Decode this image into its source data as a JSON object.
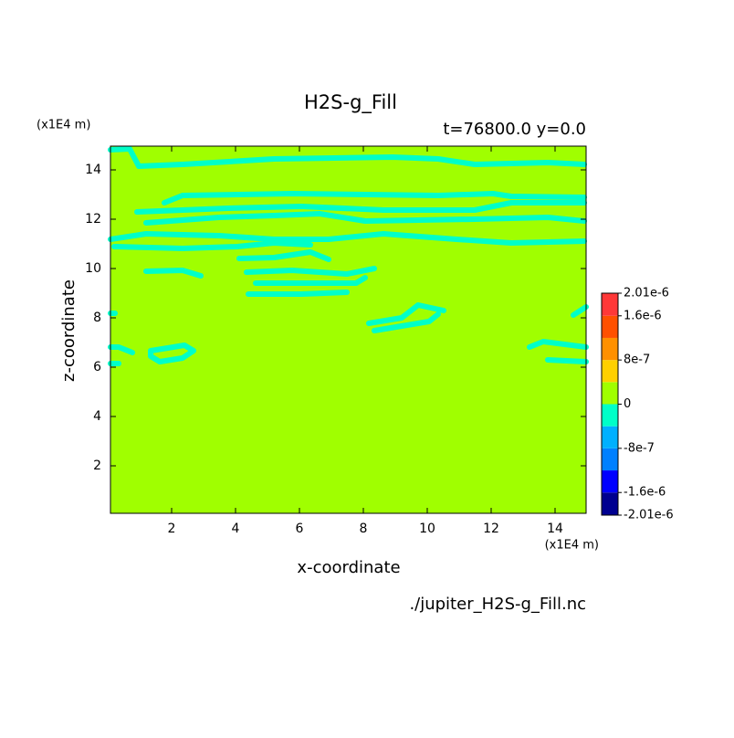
{
  "chart_data": {
    "type": "contour",
    "title": "H2S-g_Fill",
    "subtitle": "t=76800.0 y=0.0",
    "x_label": "x-coordinate",
    "y_label": "z-coordinate",
    "x_unit": "(x1E4 m)",
    "y_unit": "(x1E4 m)",
    "source": "./jupiter_H2S-g_Fill.nc",
    "xlim": [
      0,
      15
    ],
    "ylim": [
      0,
      15
    ],
    "xticks": [
      2,
      4,
      6,
      8,
      10,
      12,
      14
    ],
    "yticks": [
      2,
      4,
      6,
      8,
      10,
      12,
      14
    ],
    "colorbar": {
      "levels": [
        -2.01e-06,
        -1.6e-06,
        -1.2e-06,
        -8e-07,
        -4e-07,
        0,
        4e-07,
        8e-07,
        1.2e-06,
        1.6e-06,
        2.01e-06
      ],
      "colors": [
        "#000090",
        "#0000ff",
        "#0080ff",
        "#00b0ff",
        "#00ffc8",
        "#a0ff00",
        "#ffd000",
        "#ff9000",
        "#ff5000",
        "#ff3838"
      ],
      "ticks": [
        {
          "value": 2.01e-06,
          "label": "2.01e-6"
        },
        {
          "value": 1.6e-06,
          "label": "1.6e-6"
        },
        {
          "value": 8e-07,
          "label": "8e-7"
        },
        0,
        {
          "value": -8e-07,
          "label": "-8e-7"
        },
        {
          "value": -1.6e-06,
          "label": "-1.6e-6"
        },
        {
          "value": -2.01e-06,
          "label": "-2.01e-6"
        }
      ]
    }
  }
}
